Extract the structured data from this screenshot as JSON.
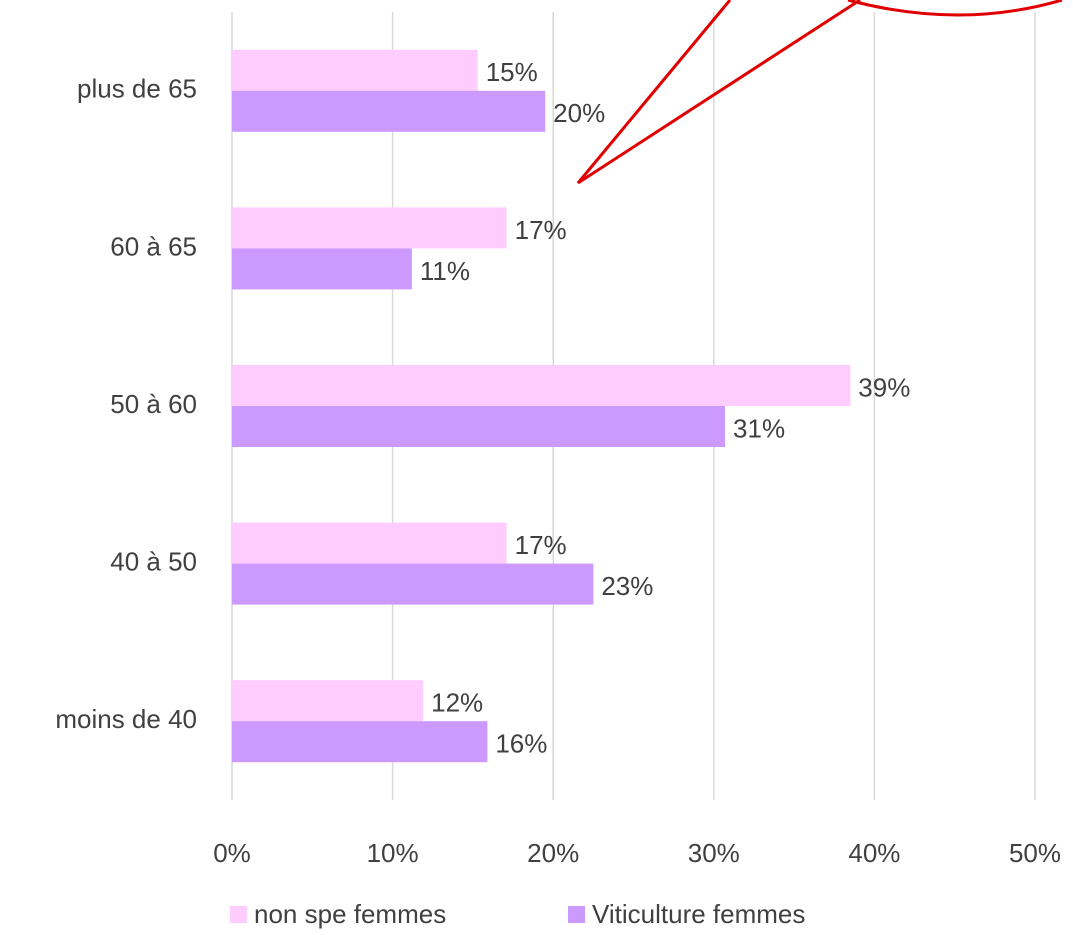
{
  "chart_data": {
    "type": "bar",
    "orientation": "horizontal",
    "categories": [
      "plus de 65",
      "60 à 65",
      "50 à 60",
      "40 à 50",
      "moins de 40"
    ],
    "series": [
      {
        "name": "non spe femmes",
        "color": "#ffccff",
        "values": [
          15.3,
          17.1,
          38.5,
          17.1,
          11.9
        ],
        "value_labels": [
          "15%",
          "17%",
          "39%",
          "17%",
          "12%"
        ]
      },
      {
        "name": "Viticulture femmes",
        "color": "#cc99ff",
        "values": [
          19.5,
          11.2,
          30.7,
          22.5,
          15.9
        ],
        "value_labels": [
          "20%",
          "11%",
          "31%",
          "23%",
          "16%"
        ]
      }
    ],
    "xlim": [
      0,
      50
    ],
    "xticks": [
      {
        "value": 0,
        "label": "0%"
      },
      {
        "value": 10,
        "label": "10%"
      },
      {
        "value": 20,
        "label": "20%"
      },
      {
        "value": 30,
        "label": "30%"
      },
      {
        "value": 40,
        "label": "40%"
      },
      {
        "value": 50,
        "label": "50%"
      }
    ],
    "grid": true,
    "legend": "bottom"
  }
}
